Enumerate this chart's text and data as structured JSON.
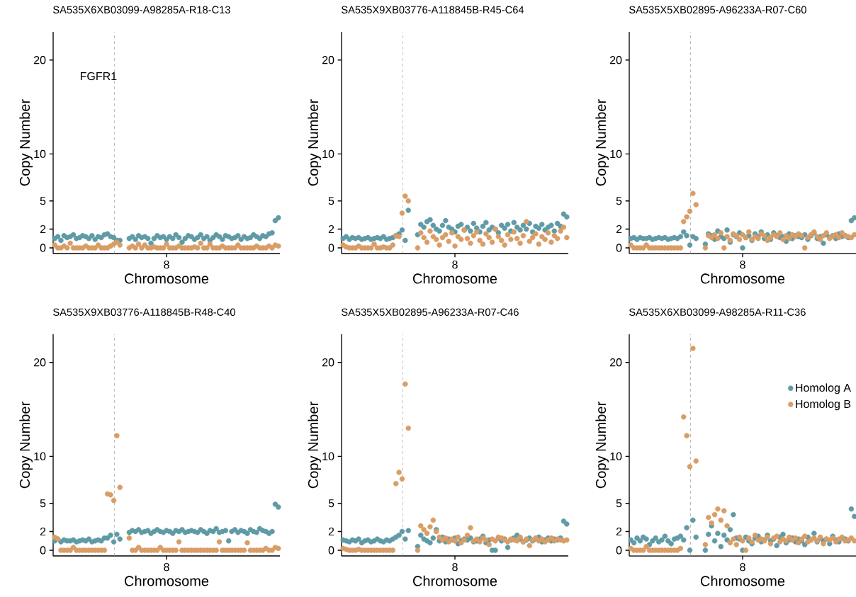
{
  "chart_data": [
    {
      "type": "scatter",
      "title": "SA535X6XB03099-A98285A-R18-C13",
      "xlabel": "Chromosome",
      "ylabel": "Copy Number",
      "grid": false,
      "categories": [
        null,
        null,
        null,
        null,
        null,
        null,
        null,
        null,
        null,
        null,
        null,
        null,
        null,
        null,
        null,
        null,
        null,
        null,
        null,
        null,
        null,
        null,
        null,
        null,
        null,
        null,
        null,
        null,
        null,
        null,
        null,
        null,
        null,
        null,
        null,
        null,
        "8",
        null,
        null,
        null,
        null,
        null,
        null,
        null,
        null,
        null,
        null,
        null,
        null,
        null,
        null,
        null,
        null,
        null,
        null,
        null,
        null,
        null,
        null,
        null,
        null,
        null,
        null,
        null,
        null,
        null,
        null,
        null,
        null,
        null,
        null,
        null,
        null
      ],
      "ylim": [
        -0.6,
        23
      ],
      "yticks": [
        {
          "value": 0,
          "label": "0"
        },
        {
          "value": 2,
          "label": "2"
        },
        {
          "value": 5,
          "label": "5"
        },
        {
          "value": 10,
          "label": "10"
        },
        {
          "value": 20,
          "label": "20"
        }
      ],
      "annotations": [
        "FGFR1"
      ],
      "series": [
        {
          "color": "#5f9ba6",
          "values": [
            1.0,
            1.2,
            0.8,
            1.3,
            1.1,
            1.2,
            1.4,
            1.0,
            1.1,
            1.3,
            1.2,
            1.0,
            1.3,
            0.9,
            1.2,
            1.1,
            1.4,
            1.5,
            1.2,
            1.1,
            0.8,
            0.8,
            null,
            null,
            1.0,
            1.2,
            0.9,
            1.3,
            1.1,
            1.2,
            1.0,
            0.5,
            1.0,
            1.3,
            1.1,
            1.2,
            0.9,
            1.2,
            1.0,
            1.4,
            1.1,
            0.6,
            1.0,
            1.3,
            1.2,
            0.9,
            1.1,
            1.4,
            1.0,
            1.2,
            0.8,
            1.1,
            1.4,
            1.2,
            0.9,
            1.3,
            1.2,
            1.0,
            1.1,
            1.3,
            0.9,
            1.2,
            1.0,
            1.1,
            1.4,
            1.2,
            1.0,
            1.3,
            1.2,
            1.5,
            1.6,
            2.9,
            3.2
          ]
        },
        {
          "color": "#d99d66",
          "values": [
            0.3,
            0,
            0,
            0.2,
            0,
            0.5,
            0,
            0,
            0,
            0,
            0.2,
            0,
            0,
            0,
            0.3,
            0,
            0,
            0,
            0.2,
            0.4,
            0.6,
            0.3,
            null,
            null,
            0,
            0.2,
            0,
            0.4,
            0,
            0.3,
            0,
            0,
            0.1,
            0,
            0,
            0,
            0.4,
            0,
            0,
            0,
            0.2,
            0,
            0,
            0,
            0,
            0.1,
            0,
            0.5,
            0,
            0,
            0.4,
            0,
            0,
            0,
            0.2,
            0,
            0,
            0,
            0,
            0.3,
            0,
            0,
            0,
            0,
            0,
            0.2,
            0,
            0,
            0,
            0.2,
            0,
            0.3,
            0.2
          ]
        }
      ]
    },
    {
      "type": "scatter",
      "title": "SA535X9XB03776-A118845B-R45-C64",
      "xlabel": "Chromosome",
      "ylabel": "Copy Number",
      "grid": false,
      "categories": [
        null,
        null,
        null,
        null,
        null,
        null,
        null,
        null,
        null,
        null,
        null,
        null,
        null,
        null,
        null,
        null,
        null,
        null,
        null,
        null,
        null,
        null,
        null,
        null,
        null,
        null,
        null,
        null,
        null,
        null,
        null,
        null,
        null,
        null,
        null,
        null,
        "8",
        null,
        null,
        null,
        null,
        null,
        null,
        null,
        null,
        null,
        null,
        null,
        null,
        null,
        null,
        null,
        null,
        null,
        null,
        null,
        null,
        null,
        null,
        null,
        null,
        null,
        null,
        null,
        null,
        null,
        null,
        null,
        null,
        null,
        null,
        null,
        null
      ],
      "ylim": [
        -0.6,
        23
      ],
      "yticks": [
        {
          "value": 0,
          "label": "0"
        },
        {
          "value": 2,
          "label": "2"
        },
        {
          "value": 5,
          "label": "5"
        },
        {
          "value": 10,
          "label": "10"
        },
        {
          "value": 20,
          "label": "20"
        }
      ],
      "series": [
        {
          "color": "#5f9ba6",
          "values": [
            1.0,
            1.2,
            0.9,
            1.1,
            1.0,
            1.1,
            0.9,
            1.0,
            1.1,
            0.9,
            1.0,
            1.1,
            1.0,
            1.2,
            0.9,
            1.0,
            1.1,
            1.3,
            1.5,
            1.9,
            0.8,
            4.0,
            null,
            null,
            1.4,
            2.5,
            2.2,
            2.8,
            3.0,
            2.4,
            2.0,
            1.8,
            2.4,
            2.9,
            2.2,
            2.0,
            1.7,
            2.3,
            2.5,
            1.9,
            2.2,
            1.8,
            2.6,
            2.1,
            1.7,
            2.3,
            2.7,
            1.9,
            2.2,
            2.0,
            1.6,
            2.4,
            2.1,
            2.5,
            1.8,
            2.7,
            2.2,
            1.9,
            2.4,
            2.0,
            2.6,
            1.7,
            2.3,
            2.1,
            2.5,
            1.9,
            2.2,
            2.4,
            1.8,
            2.6,
            2.3,
            3.6,
            3.3
          ]
        },
        {
          "color": "#d99d66",
          "values": [
            0.3,
            0.1,
            0,
            0,
            0,
            0.2,
            0,
            0,
            0,
            0,
            0.4,
            0,
            0,
            0.1,
            0,
            0,
            0.3,
            1.3,
            1.2,
            3.7,
            5.5,
            5.0,
            null,
            null,
            0,
            1.6,
            1.1,
            0.6,
            1.8,
            1.2,
            0.9,
            0.3,
            1.1,
            1.4,
            0.7,
            1.6,
            0.2,
            1.2,
            0.9,
            1.9,
            1.0,
            0.5,
            1.3,
            1.7,
            0.8,
            0.4,
            1.5,
            1.1,
            0.6,
            2.0,
            1.2,
            0.8,
            0.3,
            1.4,
            0.9,
            1.7,
            1.0,
            0.5,
            1.3,
            2.8,
            0.7,
            1.1,
            1.5,
            0.4,
            1.2,
            0.9,
            1.6,
            0.6,
            1.3,
            1.0,
            1.8,
            2.2,
            1.1
          ]
        }
      ]
    },
    {
      "type": "scatter",
      "title": "SA535X5XB02895-A96233A-R07-C60",
      "xlabel": "Chromosome",
      "ylabel": "Copy Number",
      "grid": false,
      "categories": [
        null,
        null,
        null,
        null,
        null,
        null,
        null,
        null,
        null,
        null,
        null,
        null,
        null,
        null,
        null,
        null,
        null,
        null,
        null,
        null,
        null,
        null,
        null,
        null,
        null,
        null,
        null,
        null,
        null,
        null,
        null,
        null,
        null,
        null,
        null,
        null,
        "8",
        null,
        null,
        null,
        null,
        null,
        null,
        null,
        null,
        null,
        null,
        null,
        null,
        null,
        null,
        null,
        null,
        null,
        null,
        null,
        null,
        null,
        null,
        null,
        null,
        null,
        null,
        null,
        null,
        null,
        null,
        null,
        null,
        null,
        null,
        null,
        null
      ],
      "ylim": [
        -0.6,
        23
      ],
      "yticks": [
        {
          "value": 0,
          "label": "0"
        },
        {
          "value": 2,
          "label": "2"
        },
        {
          "value": 5,
          "label": "5"
        },
        {
          "value": 10,
          "label": "10"
        },
        {
          "value": 20,
          "label": "20"
        }
      ],
      "series": [
        {
          "color": "#5f9ba6",
          "values": [
            1.0,
            1.1,
            0.9,
            1.1,
            1.0,
            1.0,
            1.1,
            0.9,
            1.0,
            1.1,
            1.0,
            1.1,
            0.9,
            1.0,
            1.1,
            1.0,
            1.2,
            1.7,
            1.3,
            0.3,
            1.2,
            1.0,
            null,
            null,
            0.4,
            1.5,
            1.3,
            0.9,
            1.8,
            1.2,
            1.0,
            1.9,
            0.6,
            1.4,
            1.2,
            1.6,
            0.0,
            1.1,
            1.3,
            0.8,
            1.5,
            1.2,
            1.7,
            1.0,
            1.4,
            0.9,
            1.6,
            1.3,
            1.1,
            1.2,
            0.7,
            1.5,
            1.0,
            1.3,
            1.2,
            1.1,
            1.4,
            0.9,
            1.3,
            1.6,
            1.0,
            1.2,
            0.5,
            1.4,
            1.1,
            1.3,
            1.0,
            1.5,
            1.2,
            1.3,
            1.1,
            2.9,
            3.2
          ]
        },
        {
          "color": "#d99d66",
          "values": [
            0.3,
            0,
            0,
            0,
            0,
            0.3,
            0,
            0,
            0,
            0,
            0,
            0,
            0,
            0,
            0,
            0,
            0,
            2.8,
            3.3,
            3.9,
            5.8,
            4.6,
            null,
            null,
            0,
            1.3,
            1.1,
            1.4,
            1.0,
            1.6,
            0.0,
            1.2,
            0.8,
            1.5,
            1.3,
            0.9,
            1.4,
            1.1,
            1.7,
            0.9,
            1.2,
            1.0,
            1.5,
            1.3,
            0.8,
            1.1,
            1.4,
            1.2,
            1.6,
            0.9,
            1.3,
            1.0,
            1.4,
            1.2,
            1.5,
            1.3,
            0.0,
            1.1,
            1.4,
            1.7,
            1.2,
            0.9,
            1.3,
            1.6,
            1.0,
            1.2,
            1.4,
            1.1,
            1.6,
            1.3,
            1.2,
            1.1,
            1.4
          ]
        }
      ]
    },
    {
      "type": "scatter",
      "title": "SA535X9XB03776-A118845B-R48-C40",
      "xlabel": "Chromosome",
      "ylabel": "Copy Number",
      "grid": false,
      "categories": [
        null,
        null,
        null,
        null,
        null,
        null,
        null,
        null,
        null,
        null,
        null,
        null,
        null,
        null,
        null,
        null,
        null,
        null,
        null,
        null,
        null,
        null,
        null,
        null,
        null,
        null,
        null,
        null,
        null,
        null,
        null,
        null,
        null,
        null,
        null,
        null,
        "8",
        null,
        null,
        null,
        null,
        null,
        null,
        null,
        null,
        null,
        null,
        null,
        null,
        null,
        null,
        null,
        null,
        null,
        null,
        null,
        null,
        null,
        null,
        null,
        null,
        null,
        null,
        null,
        null,
        null,
        null,
        null,
        null,
        null,
        null,
        null,
        null
      ],
      "ylim": [
        -0.6,
        23
      ],
      "yticks": [
        {
          "value": 0,
          "label": "0"
        },
        {
          "value": 2,
          "label": "2"
        },
        {
          "value": 5,
          "label": "5"
        },
        {
          "value": 10,
          "label": "10"
        },
        {
          "value": 20,
          "label": "20"
        }
      ],
      "series": [
        {
          "color": "#5f9ba6",
          "values": [
            1.0,
            1.2,
            0.9,
            1.1,
            1.0,
            1.0,
            1.1,
            0.9,
            1.0,
            1.1,
            1.0,
            1.2,
            0.9,
            1.0,
            1.1,
            1.0,
            1.3,
            1.3,
            1.6,
            0.9,
            1.7,
            1.2,
            null,
            null,
            1.9,
            2.1,
            2.0,
            2.2,
            1.9,
            2.0,
            2.1,
            1.8,
            2.0,
            2.2,
            2.0,
            1.9,
            2.1,
            2.0,
            1.8,
            2.1,
            2.0,
            2.2,
            1.9,
            2.0,
            2.1,
            2.0,
            1.9,
            2.2,
            2.0,
            1.8,
            2.1,
            2.0,
            2.3,
            1.9,
            2.0,
            2.1,
            1.0,
            2.0,
            2.2,
            1.9,
            2.1,
            2.0,
            1.8,
            2.2,
            2.0,
            1.9,
            2.3,
            2.1,
            2.0,
            1.8,
            2.0,
            4.9,
            4.6
          ]
        },
        {
          "color": "#d99d66",
          "values": [
            1.4,
            1.2,
            0,
            0,
            0,
            0,
            0.3,
            0,
            0,
            0,
            0,
            0,
            0,
            0,
            0,
            0,
            0,
            6.0,
            5.9,
            5.3,
            12.2,
            6.7,
            null,
            null,
            1.3,
            0,
            0,
            0.3,
            0,
            0,
            0,
            0,
            0,
            0,
            0.3,
            0,
            0,
            0,
            0,
            0,
            0.9,
            0,
            0,
            0,
            0,
            0,
            0,
            0,
            0,
            0,
            0,
            0,
            0,
            0.9,
            0,
            0,
            0,
            0,
            0,
            0,
            0,
            0,
            0.8,
            0,
            0,
            0,
            0,
            0,
            0.2,
            0,
            0,
            0.3,
            0.2
          ]
        }
      ]
    },
    {
      "type": "scatter",
      "title": "SA535X5XB02895-A96233A-R07-C46",
      "xlabel": "Chromosome",
      "ylabel": "Copy Number",
      "grid": false,
      "categories": [
        null,
        null,
        null,
        null,
        null,
        null,
        null,
        null,
        null,
        null,
        null,
        null,
        null,
        null,
        null,
        null,
        null,
        null,
        null,
        null,
        null,
        null,
        null,
        null,
        null,
        null,
        null,
        null,
        null,
        null,
        null,
        null,
        null,
        null,
        null,
        null,
        "8",
        null,
        null,
        null,
        null,
        null,
        null,
        null,
        null,
        null,
        null,
        null,
        null,
        null,
        null,
        null,
        null,
        null,
        null,
        null,
        null,
        null,
        null,
        null,
        null,
        null,
        null,
        null,
        null,
        null,
        null,
        null,
        null,
        null,
        null,
        null,
        null
      ],
      "ylim": [
        -0.6,
        23
      ],
      "yticks": [
        {
          "value": 0,
          "label": "0"
        },
        {
          "value": 2,
          "label": "2"
        },
        {
          "value": 5,
          "label": "5"
        },
        {
          "value": 10,
          "label": "10"
        },
        {
          "value": 20,
          "label": "20"
        }
      ],
      "series": [
        {
          "color": "#5f9ba6",
          "values": [
            1.1,
            1.0,
            0.9,
            1.1,
            1.0,
            1.2,
            0.8,
            1.0,
            1.1,
            0.9,
            1.0,
            1.2,
            1.0,
            0.9,
            1.1,
            1.0,
            1.2,
            1.4,
            1.6,
            2.0,
            1.2,
            2.1,
            null,
            null,
            0.4,
            1.6,
            1.2,
            1.0,
            0.8,
            1.3,
            2.2,
            1.0,
            1.4,
            0.9,
            1.2,
            1.1,
            1.3,
            0.7,
            1.0,
            1.2,
            1.1,
            1.3,
            0.9,
            1.0,
            1.2,
            1.5,
            0.8,
            1.1,
            0,
            0,
            1.3,
            1.0,
            1.2,
            0.3,
            1.1,
            1.3,
            1.6,
            1.2,
            0.9,
            1.1,
            1.3,
            1.0,
            1.2,
            1.4,
            0.9,
            1.1,
            1.3,
            1.0,
            1.2,
            1.1,
            1.3,
            3.1,
            2.8
          ]
        },
        {
          "color": "#d99d66",
          "values": [
            0.2,
            0.1,
            0,
            0,
            0,
            0.1,
            0,
            0,
            0,
            0,
            0,
            0,
            0,
            0,
            0,
            0,
            0,
            7.1,
            8.3,
            7.6,
            17.7,
            13.0,
            null,
            null,
            0,
            2.6,
            2.2,
            1.8,
            2.5,
            3.2,
            2.0,
            1.4,
            1.1,
            1.3,
            0.9,
            1.2,
            1.0,
            1.4,
            0.8,
            1.1,
            1.6,
            2.4,
            1.0,
            1.2,
            0.9,
            1.3,
            1.1,
            0.6,
            1.2,
            1.0,
            1.4,
            1.3,
            1.1,
            0.9,
            1.2,
            1.1,
            1.0,
            1.4,
            0.9,
            1.2,
            0.5,
            1.1,
            1.3,
            1.0,
            1.2,
            0.9,
            1.1,
            1.3,
            1.0,
            1.2,
            1.1,
            1.0,
            1.1
          ]
        }
      ]
    },
    {
      "type": "scatter",
      "title": "SA535X6XB03099-A98285A-R11-C36",
      "xlabel": "Chromosome",
      "ylabel": "Copy Number",
      "grid": false,
      "legend": "right",
      "categories": [
        null,
        null,
        null,
        null,
        null,
        null,
        null,
        null,
        null,
        null,
        null,
        null,
        null,
        null,
        null,
        null,
        null,
        null,
        null,
        null,
        null,
        null,
        null,
        null,
        null,
        null,
        null,
        null,
        null,
        null,
        null,
        null,
        null,
        null,
        null,
        null,
        "8",
        null,
        null,
        null,
        null,
        null,
        null,
        null,
        null,
        null,
        null,
        null,
        null,
        null,
        null,
        null,
        null,
        null,
        null,
        null,
        null,
        null,
        null,
        null,
        null,
        null,
        null,
        null,
        null,
        null,
        null,
        null,
        null,
        null,
        null,
        null,
        null
      ],
      "ylim": [
        -0.6,
        23
      ],
      "yticks": [
        {
          "value": 0,
          "label": "0"
        },
        {
          "value": 2,
          "label": "2"
        },
        {
          "value": 5,
          "label": "5"
        },
        {
          "value": 10,
          "label": "10"
        },
        {
          "value": 20,
          "label": "20"
        }
      ],
      "series": [
        {
          "name": "Homolog A",
          "color": "#5f9ba6",
          "values": [
            1.1,
            0.8,
            1.3,
            1.0,
            1.4,
            1.2,
            0.6,
            1.0,
            1.3,
            0.9,
            1.1,
            1.5,
            1.0,
            0.7,
            1.2,
            1.3,
            1.5,
            1.1,
            2.4,
            0.0,
            3.2,
            1.4,
            null,
            null,
            0,
            1.7,
            2.6,
            1.0,
            1.8,
            0.4,
            1.6,
            1.1,
            2.2,
            3.8,
            1.3,
            1.2,
            0,
            1.4,
            1.0,
            0.7,
            1.3,
            1.5,
            0.9,
            1.1,
            1.6,
            1.0,
            1.2,
            0.5,
            1.4,
            1.7,
            0.8,
            1.1,
            1.3,
            0.9,
            1.2,
            1.0,
            0.6,
            1.4,
            1.1,
            1.8,
            0.9,
            1.3,
            1.0,
            1.2,
            0.7,
            1.5,
            1.1,
            0.9,
            1.3,
            1.2,
            1.0,
            4.4,
            3.6
          ]
        },
        {
          "name": "Homolog B",
          "color": "#d99d66",
          "values": [
            0.2,
            0,
            0,
            0,
            0,
            0.4,
            0,
            0,
            0,
            0,
            0,
            0,
            0,
            0,
            0,
            0,
            0.2,
            14.2,
            12.2,
            8.9,
            21.5,
            9.5,
            null,
            null,
            0.6,
            3.5,
            2.9,
            3.8,
            4.4,
            3.2,
            4.2,
            2.6,
            0.8,
            1.2,
            0.6,
            1.4,
            1.0,
            0.0,
            1.3,
            0.9,
            1.6,
            1.1,
            1.2,
            1.0,
            1.4,
            0.7,
            1.3,
            1.5,
            0.9,
            1.2,
            1.0,
            1.4,
            1.1,
            1.3,
            0.8,
            1.2,
            1.5,
            0.9,
            1.1,
            1.3,
            1.0,
            1.4,
            0.7,
            1.2,
            1.1,
            1.3,
            0.9,
            1.2,
            1.4,
            1.0,
            1.1,
            1.3,
            1.0
          ]
        }
      ]
    }
  ]
}
